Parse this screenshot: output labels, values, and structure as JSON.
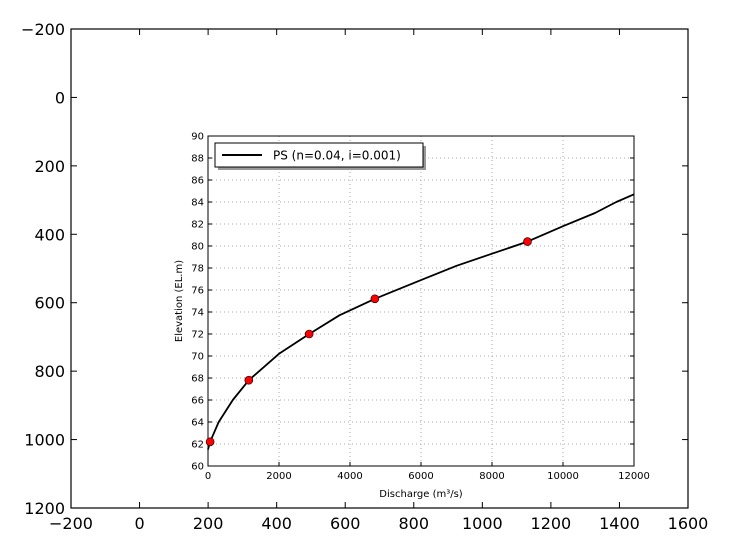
{
  "chart_data": [
    {
      "type": "line",
      "role": "outer-empty-axes",
      "title": "",
      "xlabel": "",
      "ylabel": "",
      "xlim": [
        -200,
        1600
      ],
      "ylim": [
        1200,
        -200
      ],
      "x_ticks": [
        "-200",
        "0",
        "200",
        "400",
        "600",
        "800",
        "1000",
        "1200",
        "1400",
        "1600"
      ],
      "y_ticks": [
        "-200",
        "0",
        "200",
        "400",
        "600",
        "800",
        "1000",
        "1200"
      ],
      "grid": false,
      "series": []
    },
    {
      "type": "line",
      "role": "inset-rating-curve",
      "title": "",
      "xlabel": "Discharge (m³/s)",
      "ylabel": "Elevation (EL.m)",
      "xlim": [
        0,
        12000
      ],
      "ylim": [
        60,
        90
      ],
      "x_ticks": [
        "0",
        "2000",
        "4000",
        "6000",
        "8000",
        "10000",
        "12000"
      ],
      "y_ticks": [
        "60",
        "62",
        "64",
        "66",
        "68",
        "70",
        "72",
        "74",
        "76",
        "78",
        "80",
        "82",
        "84",
        "86",
        "88",
        "90"
      ],
      "grid": true,
      "legend_position": "upper left",
      "legend": [
        "PS (n=0.04, i=0.001)"
      ],
      "series": [
        {
          "name": "PS (n=0.04, i=0.001)",
          "color": "#000000",
          "x": [
            0,
            60,
            300,
            700,
            1150,
            2000,
            2850,
            3700,
            4700,
            6000,
            7000,
            8000,
            9000,
            10000,
            10900,
            11500,
            12000
          ],
          "y": [
            61.5,
            62.2,
            64.0,
            66.0,
            67.8,
            70.2,
            72.0,
            73.7,
            75.2,
            76.9,
            78.2,
            79.3,
            80.4,
            81.8,
            83.0,
            84.0,
            84.7
          ]
        },
        {
          "name": "markers",
          "color": "#ff0000",
          "x": [
            60,
            1150,
            2850,
            4700,
            9000
          ],
          "y": [
            62.2,
            67.8,
            72.0,
            75.2,
            80.4
          ]
        }
      ]
    }
  ]
}
